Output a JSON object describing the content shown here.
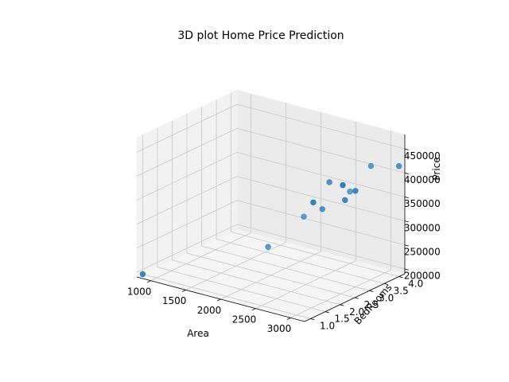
{
  "chart_data": {
    "type": "scatter3d",
    "title": "3D plot Home Price Prediction",
    "xlabel": "Area",
    "ylabel": "BedRooms",
    "zlabel": "Price",
    "xlim": [
      800,
      3200
    ],
    "ylim": [
      0.8,
      4.2
    ],
    "zlim": [
      190000,
      480000
    ],
    "xticks": [
      1000,
      1500,
      2000,
      2500,
      3000
    ],
    "yticks": [
      1.0,
      1.5,
      2.0,
      2.5,
      3.0,
      3.5,
      4.0
    ],
    "zticks": [
      200000,
      250000,
      300000,
      350000,
      400000,
      450000
    ],
    "xtick_labels": [
      "1000",
      "1500",
      "2000",
      "2500",
      "3000"
    ],
    "ytick_labels": [
      "1.0",
      "1.5",
      "2.0",
      "2.5",
      "3.0",
      "3.5",
      "4.0"
    ],
    "ztick_labels": [
      "200000",
      "250000",
      "300000",
      "350000",
      "400000",
      "450000"
    ],
    "grid": true,
    "marker_color": "#1f77b4",
    "points": [
      {
        "x": 800,
        "y": 1.0,
        "z": 190000
      },
      {
        "x": 1750,
        "y": 3.0,
        "z": 225000
      },
      {
        "x": 2500,
        "y": 4.0,
        "z": 340000
      },
      {
        "x": 2400,
        "y": 3.3,
        "z": 320000
      },
      {
        "x": 3200,
        "y": 4.0,
        "z": 420000
      },
      {
        "x": 2500,
        "y": 3.3,
        "z": 380000
      },
      {
        "x": 3000,
        "y": 3.0,
        "z": 390000
      },
      {
        "x": 2650,
        "y": 2.4,
        "z": 370000
      },
      {
        "x": 2850,
        "y": 3.0,
        "z": 365000
      },
      {
        "x": 3050,
        "y": 2.45,
        "z": 420000
      },
      {
        "x": 2800,
        "y": 4.0,
        "z": 405000
      },
      {
        "x": 2050,
        "y": 3.5,
        "z": 285000
      }
    ]
  }
}
